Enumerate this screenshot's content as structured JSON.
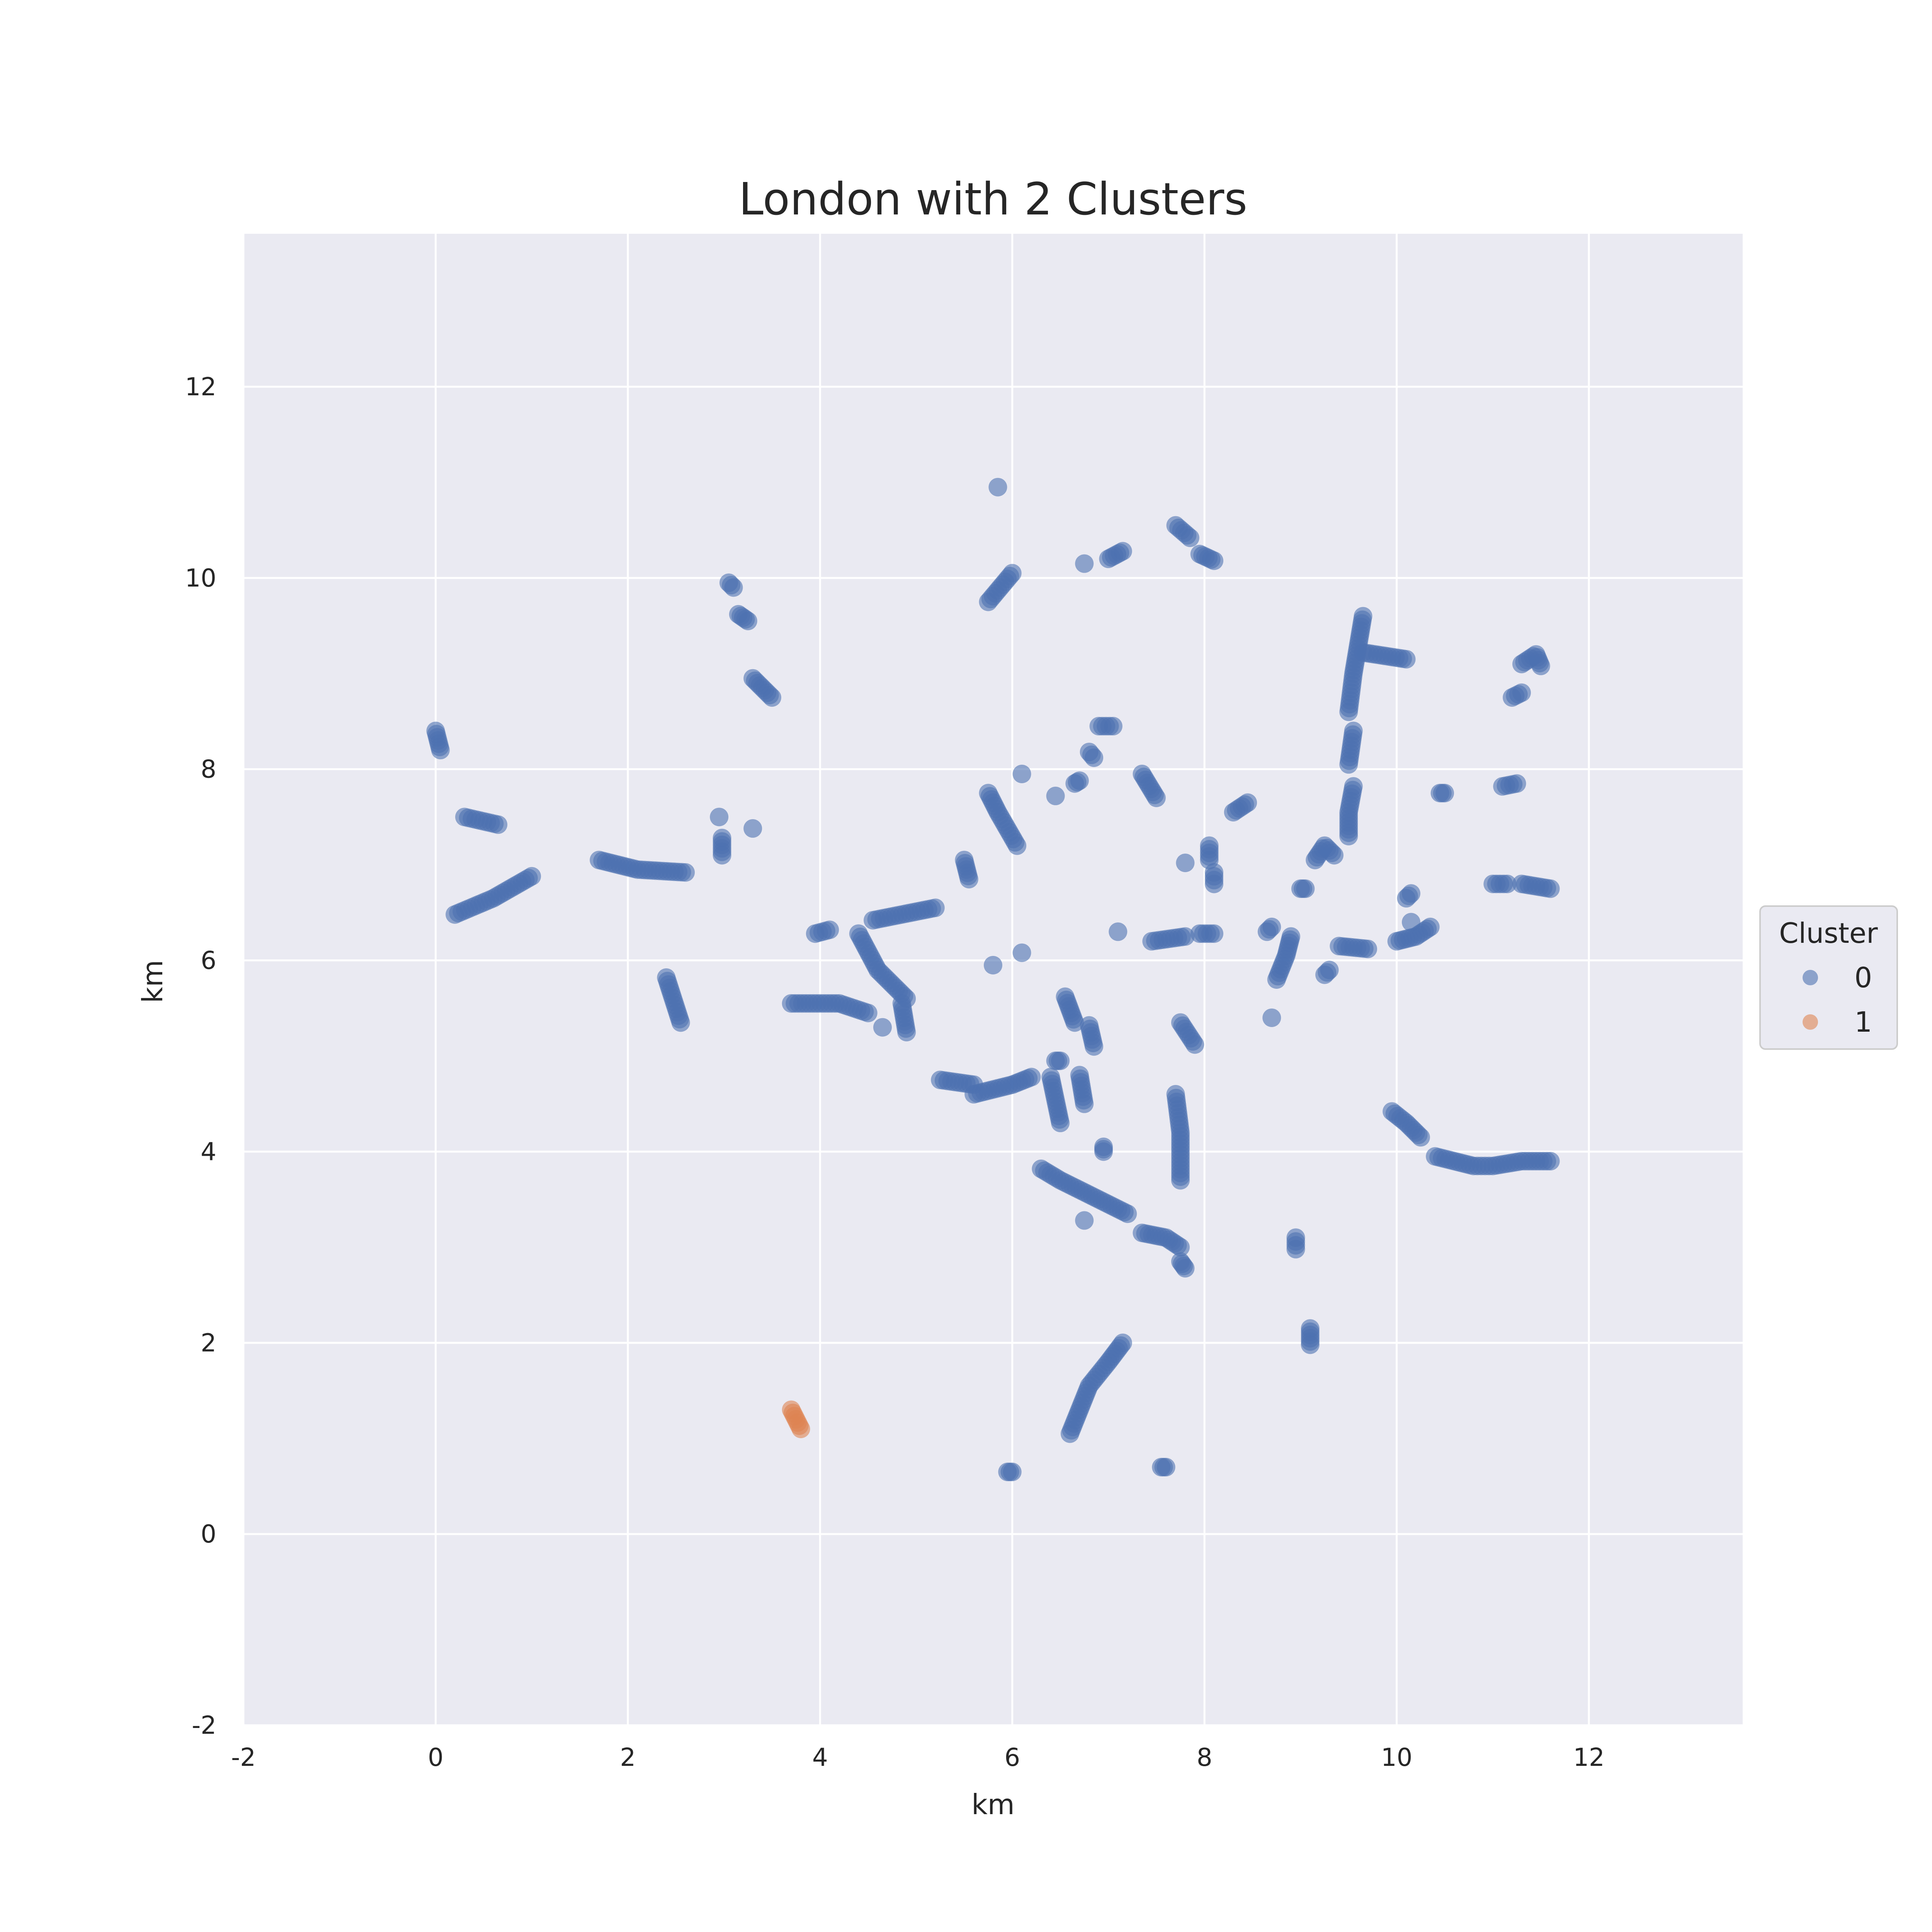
{
  "chart_data": {
    "type": "scatter",
    "title": "London with 2 Clusters",
    "xlabel": "km",
    "ylabel": "km",
    "xlim": [
      -2,
      13.6
    ],
    "ylim": [
      -2,
      13.6
    ],
    "xticks": [
      -2,
      0,
      2,
      4,
      6,
      8,
      10,
      12
    ],
    "yticks": [
      -2,
      0,
      2,
      4,
      6,
      8,
      10,
      12
    ],
    "grid": true,
    "legend": {
      "title": "Cluster",
      "placement": "right-center",
      "entries": [
        "0",
        "1"
      ]
    },
    "colors": {
      "0": "#4c72b0",
      "1": "#dd8452"
    },
    "series": [
      {
        "name": "0",
        "segments": [
          [
            [
              0.0,
              8.4
            ],
            [
              0.05,
              8.2
            ]
          ],
          [
            [
              0.3,
              7.5
            ],
            [
              0.65,
              7.42
            ]
          ],
          [
            [
              0.2,
              6.48
            ],
            [
              0.6,
              6.65
            ],
            [
              1.0,
              6.88
            ]
          ],
          [
            [
              1.7,
              7.05
            ],
            [
              2.1,
              6.95
            ],
            [
              2.6,
              6.92
            ]
          ],
          [
            [
              3.05,
              9.95
            ],
            [
              3.1,
              9.9
            ]
          ],
          [
            [
              3.15,
              9.62
            ],
            [
              3.25,
              9.55
            ]
          ],
          [
            [
              3.3,
              8.95
            ],
            [
              3.5,
              8.75
            ]
          ],
          [
            [
              2.95,
              7.5
            ]
          ],
          [
            [
              2.98,
              7.28
            ],
            [
              2.98,
              7.1
            ]
          ],
          [
            [
              3.3,
              7.38
            ]
          ],
          [
            [
              2.4,
              5.82
            ],
            [
              2.55,
              5.35
            ]
          ],
          [
            [
              3.7,
              5.55
            ],
            [
              4.2,
              5.55
            ],
            [
              4.5,
              5.45
            ]
          ],
          [
            [
              3.95,
              6.28
            ],
            [
              4.1,
              6.32
            ]
          ],
          [
            [
              4.4,
              6.28
            ],
            [
              4.6,
              5.9
            ],
            [
              4.9,
              5.6
            ]
          ],
          [
            [
              4.65,
              5.3
            ]
          ],
          [
            [
              4.85,
              5.55
            ],
            [
              4.9,
              5.25
            ]
          ],
          [
            [
              4.55,
              6.42
            ],
            [
              5.2,
              6.55
            ]
          ],
          [
            [
              5.25,
              4.75
            ],
            [
              5.6,
              4.7
            ]
          ],
          [
            [
              5.5,
              7.05
            ],
            [
              5.55,
              6.85
            ]
          ],
          [
            [
              5.8,
              5.95
            ]
          ],
          [
            [
              5.6,
              4.6
            ],
            [
              6.0,
              4.7
            ],
            [
              6.2,
              4.78
            ]
          ],
          [
            [
              5.75,
              9.75
            ],
            [
              6.0,
              10.05
            ]
          ],
          [
            [
              5.85,
              10.95
            ]
          ],
          [
            [
              5.75,
              7.75
            ],
            [
              5.85,
              7.55
            ],
            [
              6.05,
              7.2
            ]
          ],
          [
            [
              6.1,
              7.95
            ]
          ],
          [
            [
              6.1,
              6.08
            ]
          ],
          [
            [
              6.45,
              7.72
            ]
          ],
          [
            [
              6.65,
              7.85
            ],
            [
              6.7,
              7.88
            ]
          ],
          [
            [
              6.8,
              8.18
            ],
            [
              6.85,
              8.12
            ]
          ],
          [
            [
              6.9,
              8.45
            ],
            [
              7.05,
              8.45
            ]
          ],
          [
            [
              6.75,
              10.15
            ]
          ],
          [
            [
              7.0,
              10.2
            ],
            [
              7.15,
              10.28
            ]
          ],
          [
            [
              7.7,
              10.55
            ],
            [
              7.85,
              10.42
            ]
          ],
          [
            [
              7.95,
              10.25
            ],
            [
              8.1,
              10.18
            ]
          ],
          [
            [
              7.35,
              7.95
            ],
            [
              7.5,
              7.7
            ]
          ],
          [
            [
              7.8,
              7.02
            ]
          ],
          [
            [
              8.05,
              7.2
            ],
            [
              8.05,
              7.05
            ]
          ],
          [
            [
              8.1,
              6.92
            ],
            [
              8.1,
              6.8
            ]
          ],
          [
            [
              8.3,
              7.55
            ],
            [
              8.45,
              7.65
            ]
          ],
          [
            [
              7.1,
              6.3
            ]
          ],
          [
            [
              7.45,
              6.2
            ],
            [
              7.8,
              6.25
            ]
          ],
          [
            [
              7.95,
              6.28
            ],
            [
              8.1,
              6.28
            ]
          ],
          [
            [
              6.55,
              5.62
            ],
            [
              6.65,
              5.35
            ]
          ],
          [
            [
              6.8,
              5.32
            ],
            [
              6.85,
              5.1
            ]
          ],
          [
            [
              6.45,
              4.95
            ],
            [
              6.5,
              4.95
            ]
          ],
          [
            [
              6.4,
              4.78
            ],
            [
              6.5,
              4.3
            ]
          ],
          [
            [
              6.7,
              4.8
            ],
            [
              6.75,
              4.5
            ]
          ],
          [
            [
              7.75,
              5.35
            ],
            [
              7.9,
              5.12
            ]
          ],
          [
            [
              7.7,
              4.6
            ],
            [
              7.75,
              4.2
            ],
            [
              7.75,
              3.7
            ]
          ],
          [
            [
              6.95,
              4.05
            ],
            [
              6.95,
              4.0
            ]
          ],
          [
            [
              6.3,
              3.82
            ],
            [
              6.5,
              3.7
            ],
            [
              6.9,
              3.5
            ],
            [
              7.2,
              3.35
            ]
          ],
          [
            [
              6.75,
              3.28
            ]
          ],
          [
            [
              7.35,
              3.15
            ],
            [
              7.6,
              3.1
            ],
            [
              7.75,
              3.0
            ]
          ],
          [
            [
              7.75,
              2.85
            ],
            [
              7.8,
              2.78
            ]
          ],
          [
            [
              8.7,
              6.35
            ],
            [
              8.65,
              6.3
            ]
          ],
          [
            [
              8.75,
              5.8
            ],
            [
              8.85,
              6.05
            ],
            [
              8.9,
              6.25
            ]
          ],
          [
            [
              8.7,
              5.4
            ]
          ],
          [
            [
              9.0,
              6.75
            ],
            [
              9.05,
              6.75
            ]
          ],
          [
            [
              9.25,
              5.85
            ],
            [
              9.3,
              5.9
            ]
          ],
          [
            [
              9.4,
              6.15
            ],
            [
              9.7,
              6.12
            ]
          ],
          [
            [
              9.15,
              7.05
            ],
            [
              9.25,
              7.2
            ],
            [
              9.35,
              7.1
            ]
          ],
          [
            [
              9.5,
              7.3
            ],
            [
              9.5,
              7.55
            ],
            [
              9.55,
              7.82
            ]
          ],
          [
            [
              9.5,
              8.05
            ],
            [
              9.55,
              8.4
            ]
          ],
          [
            [
              9.5,
              8.6
            ],
            [
              9.55,
              9.0
            ],
            [
              9.6,
              9.3
            ],
            [
              9.65,
              9.6
            ]
          ],
          [
            [
              9.65,
              9.22
            ],
            [
              10.1,
              9.15
            ]
          ],
          [
            [
              9.95,
              4.42
            ],
            [
              10.1,
              4.3
            ],
            [
              10.25,
              4.15
            ]
          ],
          [
            [
              10.4,
              3.95
            ],
            [
              10.8,
              3.85
            ],
            [
              11.0,
              3.85
            ],
            [
              11.3,
              3.9
            ],
            [
              11.6,
              3.9
            ]
          ],
          [
            [
              10.0,
              6.2
            ],
            [
              10.2,
              6.25
            ],
            [
              10.35,
              6.35
            ]
          ],
          [
            [
              10.1,
              6.65
            ],
            [
              10.15,
              6.7
            ]
          ],
          [
            [
              10.15,
              6.4
            ]
          ],
          [
            [
              10.45,
              7.75
            ],
            [
              10.5,
              7.75
            ]
          ],
          [
            [
              11.1,
              7.82
            ],
            [
              11.25,
              7.85
            ]
          ],
          [
            [
              11.0,
              6.8
            ],
            [
              11.15,
              6.8
            ]
          ],
          [
            [
              11.3,
              6.8
            ],
            [
              11.6,
              6.75
            ]
          ],
          [
            [
              11.2,
              8.75
            ],
            [
              11.3,
              8.8
            ]
          ],
          [
            [
              11.3,
              9.1
            ],
            [
              11.45,
              9.2
            ],
            [
              11.5,
              9.08
            ]
          ],
          [
            [
              8.95,
              3.1
            ],
            [
              8.95,
              2.98
            ]
          ],
          [
            [
              9.1,
              2.15
            ],
            [
              9.1,
              1.98
            ]
          ],
          [
            [
              6.6,
              1.05
            ],
            [
              6.8,
              1.55
            ],
            [
              7.0,
              1.8
            ],
            [
              7.15,
              2.0
            ]
          ],
          [
            [
              5.95,
              0.65
            ],
            [
              6.0,
              0.65
            ]
          ],
          [
            [
              7.55,
              0.7
            ],
            [
              7.6,
              0.7
            ]
          ]
        ]
      },
      {
        "name": "1",
        "segments": [
          [
            [
              3.7,
              1.3
            ],
            [
              3.75,
              1.2
            ],
            [
              3.8,
              1.1
            ]
          ]
        ]
      }
    ]
  }
}
